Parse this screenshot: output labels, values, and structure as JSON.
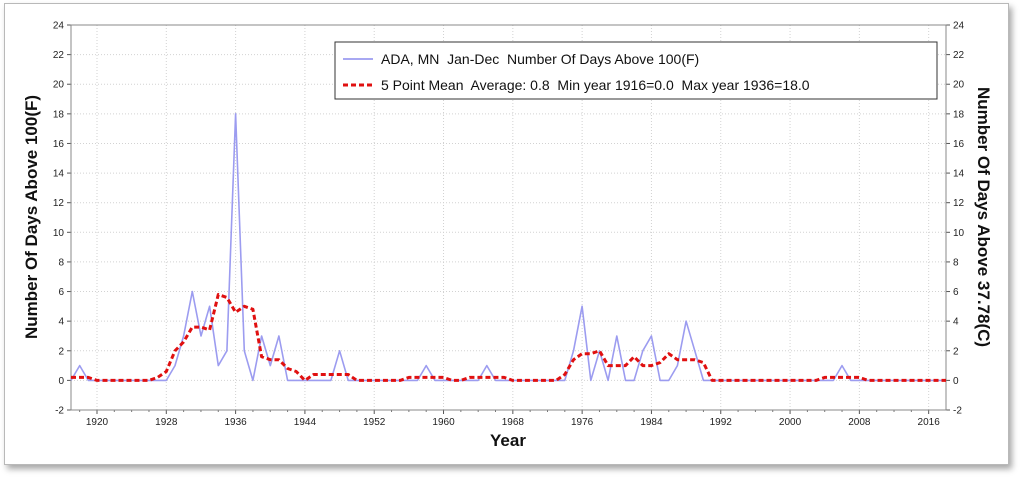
{
  "chart_data": {
    "type": "line",
    "xlabel": "Year",
    "ylabel_left": "Number Of Days Above 100(F)",
    "ylabel_right": "Number Of Days Above 37.78(C)",
    "xlim": [
      1917,
      2018
    ],
    "ylim": [
      -2,
      24
    ],
    "xticks": [
      1920,
      1928,
      1936,
      1944,
      1952,
      1960,
      1968,
      1976,
      1984,
      1992,
      2000,
      2008,
      2016
    ],
    "yticks": [
      -2,
      0,
      2,
      4,
      6,
      8,
      10,
      12,
      14,
      16,
      18,
      20,
      22,
      24
    ],
    "grid": true,
    "legend_position": "top-right",
    "series": [
      {
        "name": "ADA, MN  Jan-Dec  Number Of Days Above 100(F)",
        "style": "solid",
        "color": "#9c9cf0",
        "x": [
          1917,
          1918,
          1919,
          1920,
          1921,
          1922,
          1923,
          1924,
          1925,
          1926,
          1927,
          1928,
          1929,
          1930,
          1931,
          1932,
          1933,
          1934,
          1935,
          1936,
          1937,
          1938,
          1939,
          1940,
          1941,
          1942,
          1943,
          1944,
          1945,
          1946,
          1947,
          1948,
          1949,
          1950,
          1951,
          1952,
          1953,
          1954,
          1955,
          1956,
          1957,
          1958,
          1959,
          1960,
          1961,
          1962,
          1963,
          1964,
          1965,
          1966,
          1967,
          1968,
          1969,
          1970,
          1971,
          1972,
          1973,
          1974,
          1975,
          1976,
          1977,
          1978,
          1979,
          1980,
          1981,
          1982,
          1983,
          1984,
          1985,
          1986,
          1987,
          1988,
          1989,
          1990,
          1991,
          1992,
          1993,
          1994,
          1995,
          1996,
          1997,
          1998,
          1999,
          2000,
          2001,
          2002,
          2003,
          2004,
          2005,
          2006,
          2007,
          2008,
          2009,
          2010,
          2011,
          2012,
          2013,
          2014,
          2015,
          2016,
          2017,
          2018
        ],
        "values": [
          0,
          1,
          0,
          0,
          0,
          0,
          0,
          0,
          0,
          0,
          0,
          0,
          1,
          3,
          6,
          3,
          5,
          1,
          2,
          18,
          2,
          0,
          3,
          1,
          3,
          0,
          0,
          0,
          0,
          0,
          0,
          2,
          0,
          0,
          0,
          0,
          0,
          0,
          0,
          0,
          0,
          1,
          0,
          0,
          0,
          0,
          0,
          0,
          1,
          0,
          0,
          0,
          0,
          0,
          0,
          0,
          0,
          0,
          2,
          5,
          0,
          2,
          0,
          3,
          0,
          0,
          2,
          3,
          0,
          0,
          1,
          4,
          2,
          0,
          0,
          0,
          0,
          0,
          0,
          0,
          0,
          0,
          0,
          0,
          0,
          0,
          0,
          0,
          0,
          1,
          0,
          0,
          0,
          0,
          0,
          0,
          0,
          0,
          0,
          0,
          0,
          0
        ]
      },
      {
        "name": "5 Point Mean  Average: 0.8  Min year 1916=0.0  Max year 1936=18.0",
        "style": "dashed",
        "color": "#e01010",
        "x": [
          1917,
          1918,
          1919,
          1920,
          1921,
          1922,
          1923,
          1924,
          1925,
          1926,
          1927,
          1928,
          1929,
          1930,
          1931,
          1932,
          1933,
          1934,
          1935,
          1936,
          1937,
          1938,
          1939,
          1940,
          1941,
          1942,
          1943,
          1944,
          1945,
          1946,
          1947,
          1948,
          1949,
          1950,
          1951,
          1952,
          1953,
          1954,
          1955,
          1956,
          1957,
          1958,
          1959,
          1960,
          1961,
          1962,
          1963,
          1964,
          1965,
          1966,
          1967,
          1968,
          1969,
          1970,
          1971,
          1972,
          1973,
          1974,
          1975,
          1976,
          1977,
          1978,
          1979,
          1980,
          1981,
          1982,
          1983,
          1984,
          1985,
          1986,
          1987,
          1988,
          1989,
          1990,
          1991,
          1992,
          1993,
          1994,
          1995,
          1996,
          1997,
          1998,
          1999,
          2000,
          2001,
          2002,
          2003,
          2004,
          2005,
          2006,
          2007,
          2008,
          2009,
          2010,
          2011,
          2012,
          2013,
          2014,
          2015,
          2016,
          2017,
          2018
        ],
        "values": [
          0.2,
          0.2,
          0.2,
          0,
          0,
          0,
          0,
          0,
          0,
          0,
          0.2,
          0.6,
          2.0,
          2.6,
          3.6,
          3.6,
          3.4,
          5.8,
          5.6,
          4.6,
          5.0,
          4.8,
          1.6,
          1.4,
          1.4,
          0.8,
          0.6,
          0,
          0.4,
          0.4,
          0.4,
          0.4,
          0.4,
          0,
          0,
          0,
          0,
          0,
          0,
          0.2,
          0.2,
          0.2,
          0.2,
          0.2,
          0,
          0,
          0.2,
          0.2,
          0.2,
          0.2,
          0.2,
          0,
          0,
          0,
          0,
          0,
          0,
          0.4,
          1.4,
          1.8,
          1.8,
          2.0,
          1.0,
          1.0,
          1.0,
          1.6,
          1.0,
          1.0,
          1.2,
          1.8,
          1.4,
          1.4,
          1.4,
          1.2,
          0,
          0,
          0,
          0,
          0,
          0,
          0,
          0,
          0,
          0,
          0,
          0,
          0,
          0.2,
          0.2,
          0.2,
          0.2,
          0.2,
          0,
          0,
          0,
          0,
          0,
          0,
          0,
          0,
          0,
          0
        ]
      }
    ]
  }
}
